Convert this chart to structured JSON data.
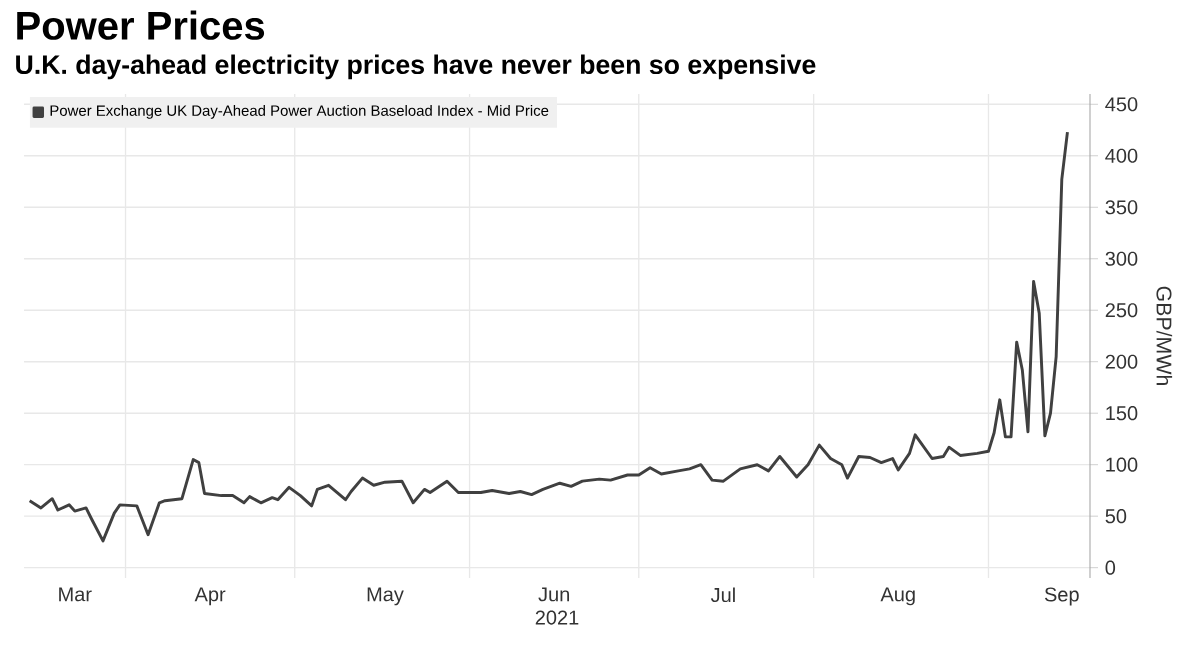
{
  "chart_data": {
    "type": "line",
    "title": "Power Prices",
    "subtitle": "U.K. day-ahead electricity prices have never been so expensive",
    "xlabel": "2021",
    "ylabel": "GBP/MWh",
    "legend": "top left",
    "grid": true,
    "xlim": [
      "2021-03-14",
      "2021-09-19"
    ],
    "ylim": [
      -10,
      460
    ],
    "yticks": [
      0,
      50,
      100,
      150,
      200,
      250,
      300,
      350,
      400,
      450
    ],
    "xticks": [
      {
        "value": "2021-04-01",
        "label": null
      },
      {
        "value": "2021-05-01",
        "label": null
      },
      {
        "value": "2021-06-01",
        "label": null
      },
      {
        "value": "2021-07-01",
        "label": null
      },
      {
        "value": "2021-08-01",
        "label": null
      },
      {
        "value": "2021-09-01",
        "label": null
      },
      {
        "value": "2021-03-23",
        "label": "Mar"
      },
      {
        "value": "2021-04-16",
        "label": "Apr"
      },
      {
        "value": "2021-05-17",
        "label": "May"
      },
      {
        "value": "2021-06-16",
        "label": "Jun"
      },
      {
        "value": "2021-07-16",
        "label": "Jul"
      },
      {
        "value": "2021-08-16",
        "label": "Aug"
      },
      {
        "value": "2021-09-14",
        "label": "Sep"
      }
    ],
    "x": [
      "2021-03-15",
      "2021-03-17",
      "2021-03-19",
      "2021-03-20",
      "2021-03-22",
      "2021-03-23",
      "2021-03-25",
      "2021-03-26",
      "2021-03-28",
      "2021-03-30",
      "2021-03-31",
      "2021-04-03",
      "2021-04-05",
      "2021-04-07",
      "2021-04-08",
      "2021-04-11",
      "2021-04-13",
      "2021-04-14",
      "2021-04-15",
      "2021-04-18",
      "2021-04-20",
      "2021-04-22",
      "2021-04-23",
      "2021-04-25",
      "2021-04-27",
      "2021-04-28",
      "2021-04-30",
      "2021-05-02",
      "2021-05-04",
      "2021-05-05",
      "2021-05-07",
      "2021-05-10",
      "2021-05-11",
      "2021-05-13",
      "2021-05-15",
      "2021-05-17",
      "2021-05-20",
      "2021-05-22",
      "2021-05-24",
      "2021-05-25",
      "2021-05-28",
      "2021-05-30",
      "2021-06-03",
      "2021-06-05",
      "2021-06-08",
      "2021-06-10",
      "2021-06-12",
      "2021-06-14",
      "2021-06-17",
      "2021-06-19",
      "2021-06-21",
      "2021-06-24",
      "2021-06-26",
      "2021-06-29",
      "2021-07-01",
      "2021-07-03",
      "2021-07-05",
      "2021-07-08",
      "2021-07-10",
      "2021-07-12",
      "2021-07-14",
      "2021-07-16",
      "2021-07-19",
      "2021-07-22",
      "2021-07-24",
      "2021-07-26",
      "2021-07-29",
      "2021-07-31",
      "2021-08-02",
      "2021-08-04",
      "2021-08-06",
      "2021-08-07",
      "2021-08-09",
      "2021-08-11",
      "2021-08-13",
      "2021-08-15",
      "2021-08-16",
      "2021-08-18",
      "2021-08-19",
      "2021-08-22",
      "2021-08-24",
      "2021-08-25",
      "2021-08-27",
      "2021-08-30",
      "2021-09-01",
      "2021-09-02",
      "2021-09-03",
      "2021-09-04",
      "2021-09-05",
      "2021-09-06",
      "2021-09-07",
      "2021-09-08",
      "2021-09-09",
      "2021-09-10",
      "2021-09-11",
      "2021-09-12",
      "2021-09-13",
      "2021-09-14",
      "2021-09-15"
    ],
    "series": [
      {
        "name": "Power Exchange UK Day-Ahead Power Auction Baseload Index - Mid Price",
        "color": "#404040",
        "values": [
          65,
          58,
          67,
          56,
          61,
          55,
          58,
          47,
          26,
          53,
          61,
          60,
          32,
          63,
          65,
          67,
          105,
          102,
          72,
          70,
          70,
          63,
          69,
          63,
          68,
          66,
          78,
          70,
          60,
          76,
          80,
          66,
          74,
          87,
          80,
          83,
          84,
          63,
          76,
          73,
          84,
          73,
          73,
          75,
          72,
          74,
          71,
          76,
          82,
          79,
          84,
          86,
          85,
          90,
          90,
          97,
          91,
          94,
          96,
          100,
          85,
          84,
          96,
          100,
          94,
          108,
          88,
          100,
          119,
          106,
          100,
          87,
          108,
          107,
          102,
          106,
          95,
          111,
          129,
          106,
          108,
          117,
          109,
          111,
          113,
          131,
          163,
          127,
          127,
          219,
          192,
          132,
          278,
          247,
          128,
          150,
          205,
          377,
          423
        ]
      }
    ]
  }
}
